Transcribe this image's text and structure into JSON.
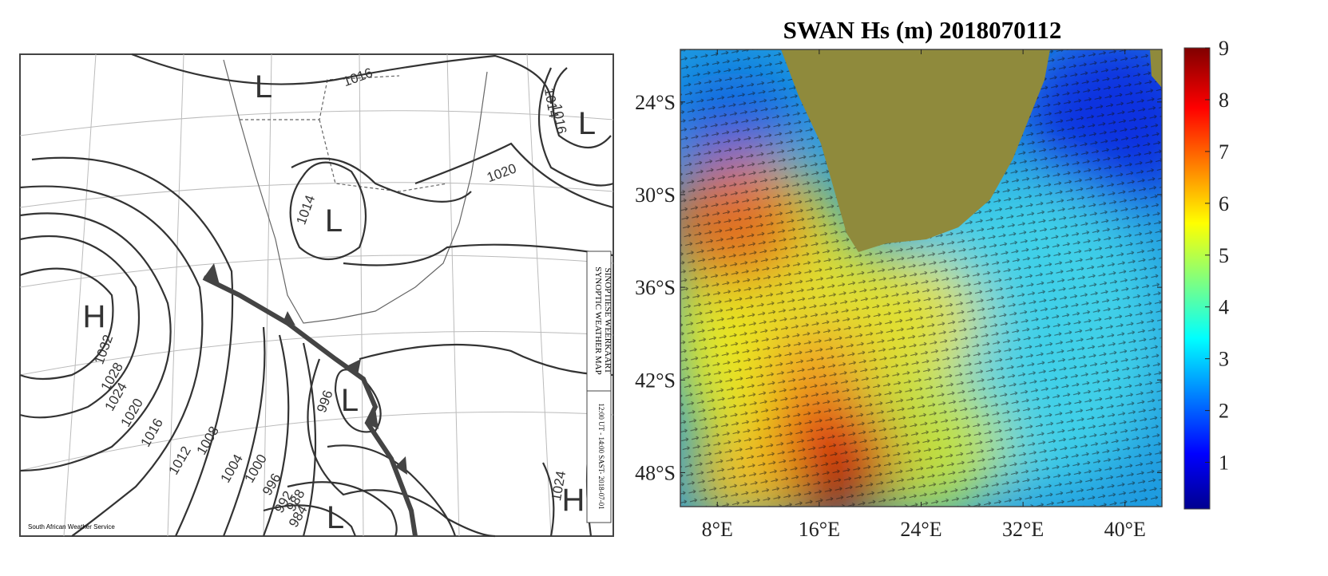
{
  "left_map": {
    "title": "SYNOPTIC WEATHER MAP",
    "subtitle": "SINOPTIESE WEERKAART",
    "time": "12:00 UT - 14:00 SAST- 2018-07-01",
    "credit": "South African Weather Service",
    "pressure_systems": [
      "L",
      "L",
      "L",
      "L",
      "L",
      "H",
      "H"
    ],
    "isobars": [
      1016,
      1014,
      1016,
      1020,
      1014,
      1032,
      1028,
      1024,
      1020,
      1016,
      1012,
      1008,
      1004,
      1000,
      996,
      992,
      988,
      984,
      996,
      1024
    ]
  },
  "right_map": {
    "title": "SWAN Hs (m) 2018070112",
    "xlim": [
      5.1,
      42.9
    ],
    "xticks": [
      {
        "value": 8,
        "label": "8°E"
      },
      {
        "value": 16,
        "label": "16°E"
      },
      {
        "value": 24,
        "label": "24°E"
      },
      {
        "value": 32,
        "label": "32°E"
      },
      {
        "value": 40,
        "label": "40°E"
      }
    ],
    "ylim": [
      20.6,
      50.2
    ],
    "yticks": [
      {
        "value": 24,
        "label": "24°S"
      },
      {
        "value": 30,
        "label": "30°S"
      },
      {
        "value": 36,
        "label": "36°S"
      },
      {
        "value": 42,
        "label": "42°S"
      },
      {
        "value": 48,
        "label": "48°S"
      }
    ],
    "colorbar": {
      "lim": [
        0.1,
        9
      ],
      "ticks": [
        1,
        2,
        3,
        4,
        5,
        6,
        7,
        8,
        9
      ]
    }
  }
}
